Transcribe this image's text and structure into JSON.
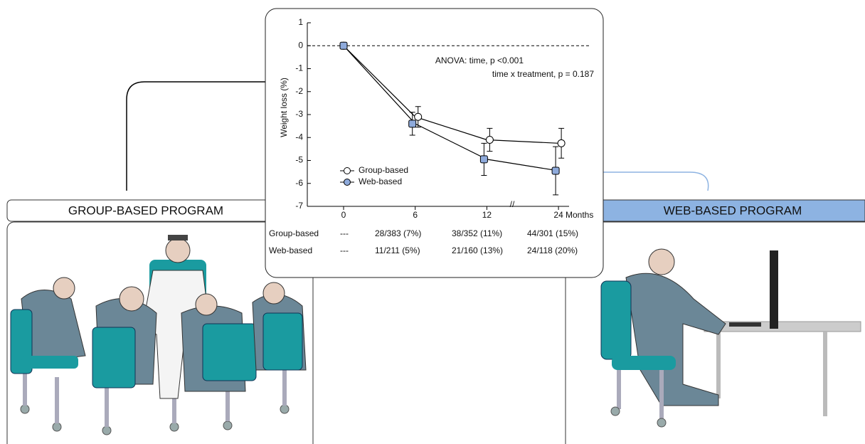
{
  "chart_data": {
    "type": "line",
    "categories": [
      "0",
      "6",
      "12",
      "24"
    ],
    "xlabel": "Months",
    "ylabel": "Weight loss (%)",
    "ylim": [
      -7,
      1
    ],
    "yticks": [
      -7,
      -6,
      -5,
      -4,
      -3,
      -2,
      -1,
      0,
      1
    ],
    "series": [
      {
        "name": "Group-based",
        "color": "#000000",
        "marker_fill": "#ffffff",
        "values": [
          0,
          -3.1,
          -4.1,
          -4.25
        ],
        "errors": [
          null,
          0.45,
          0.5,
          0.65
        ]
      },
      {
        "name": "Web-based",
        "color": "#000000",
        "marker_fill": "#8eaadb",
        "values": [
          0,
          -3.4,
          -4.95,
          -5.45
        ],
        "errors": [
          null,
          0.5,
          0.7,
          1.05
        ]
      }
    ],
    "annotations": [
      "ANOVA: time, p <0.001",
      "time x treatment, p = 0.187"
    ]
  },
  "dropout_table": {
    "rows": [
      [
        "Group-based",
        "---",
        "28/383 (7%)",
        "38/352 (11%)",
        "44/301 (15%)"
      ],
      [
        "Web-based",
        "---",
        "11/211 (5%)",
        "21/160 (13%)",
        "24/118 (20%)"
      ]
    ]
  },
  "panels": {
    "group": "GROUP-BASED PROGRAM",
    "web": "WEB-BASED PROGRAM"
  }
}
